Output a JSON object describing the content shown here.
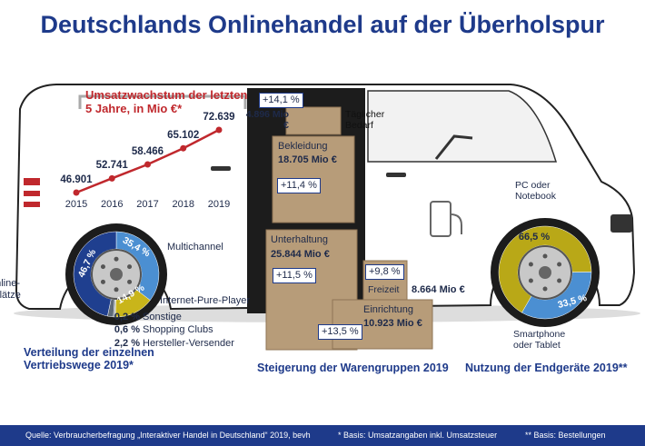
{
  "title": "Deutschlands Onlinehandel auf der Überholspur",
  "chart_data": [
    {
      "type": "line",
      "title": "Umsatzwachstum der letzten 5 Jahre, in Mio €*",
      "color": "#c0282d",
      "x": [
        2015,
        2016,
        2017,
        2018,
        2019
      ],
      "values": [
        46901,
        52741,
        58466,
        65102,
        72639
      ],
      "value_labels": [
        "46.901",
        "52.741",
        "58.466",
        "65.102",
        "72.639"
      ]
    },
    {
      "type": "pie",
      "title": "Verteilung der einzelnen Vertriebswege 2019*",
      "categories": [
        "Multichannel",
        "Internet-Pure-Player",
        "Sonstige",
        "Shopping Clubs",
        "Hersteller-Versender",
        "Online-Marktplätze"
      ],
      "values": [
        35.4,
        14.9,
        0.2,
        0.6,
        2.2,
        46.7
      ],
      "value_labels": [
        "35,4 %",
        "14,9 %",
        "0,2 %",
        "0,6 %",
        "2,2 %",
        "46,7 %"
      ],
      "colors": [
        "#4b8fd2",
        "#c9b51a",
        "#9aa3ad",
        "#7d8894",
        "#5e6a78",
        "#1f3f8f"
      ]
    },
    {
      "type": "pie",
      "title": "Nutzung der Endgeräte 2019**",
      "categories": [
        "PC oder Notebook",
        "Smartphone oder Tablet"
      ],
      "values": [
        66.5,
        33.5
      ],
      "value_labels": [
        "66,5 %",
        "33,5 %"
      ],
      "colors": [
        "#b9a817",
        "#4b8fd2"
      ]
    }
  ],
  "goods": {
    "title": "Steigerung der Warengruppen 2019",
    "items": [
      {
        "name": "Täglicher Bedarf",
        "value": "4.896 Mio €",
        "growth": "+14,1 %"
      },
      {
        "name": "Bekleidung",
        "value": "18.705 Mio €",
        "growth": "+11,4 %"
      },
      {
        "name": "Unterhaltung",
        "value": "25.844 Mio €",
        "growth": "+11,5 %"
      },
      {
        "name": "Freizeit",
        "value": "8.664 Mio €",
        "growth": "+9,8 %"
      },
      {
        "name": "Einrichtung",
        "value": "10.923 Mio €",
        "growth": "+13,5 %"
      }
    ]
  },
  "footer": {
    "source": "Quelle: Verbraucherbefragung „Interaktiver Handel in Deutschland“ 2019, bevh",
    "note1": "* Basis: Umsatzangaben inkl. Umsatzsteuer",
    "note2": "** Basis: Bestellungen"
  }
}
